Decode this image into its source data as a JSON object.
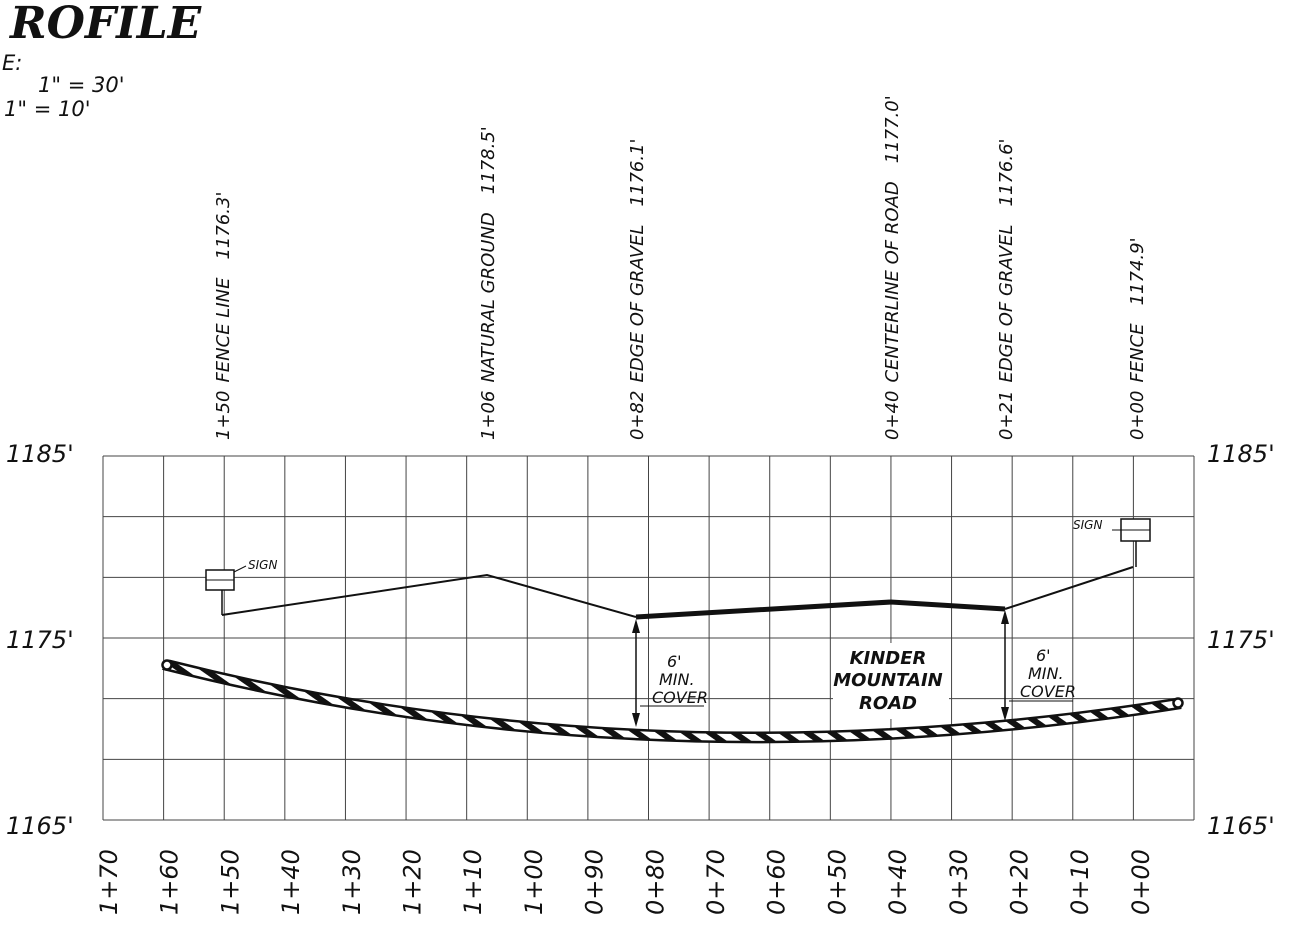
{
  "title": {
    "text": "ROFILE",
    "scale_label": "E:",
    "horizontal_scale": "1\" = 30'",
    "vertical_scale": "1\" = 10'"
  },
  "elevation_labels": {
    "left": [
      "1185'",
      "1175'",
      "1165'"
    ],
    "right": [
      "1185'",
      "1175'",
      "1165'"
    ]
  },
  "station_labels": [
    "1+70",
    "1+60",
    "1+50",
    "1+40",
    "1+30",
    "1+20",
    "1+10",
    "1+00",
    "0+90",
    "0+80",
    "0+70",
    "0+60",
    "0+50",
    "0+40",
    "0+30",
    "0+20",
    "0+10",
    "0+00"
  ],
  "callouts": [
    {
      "station": "1+50",
      "label": "FENCE LINE",
      "elevation": "1176.3'"
    },
    {
      "station": "1+06",
      "label": "NATURAL GROUND",
      "elevation": "1178.5'"
    },
    {
      "station": "0+82",
      "label": "EDGE OF GRAVEL",
      "elevation": "1176.1'"
    },
    {
      "station": "0+40",
      "label": "CENTERLINE OF ROAD",
      "elevation": "1177.0'"
    },
    {
      "station": "0+21",
      "label": "EDGE OF GRAVEL",
      "elevation": "1176.6'"
    },
    {
      "station": "0+00",
      "label": "FENCE",
      "elevation": "1174.9'"
    }
  ],
  "annotations": {
    "sign_left": "SIGN",
    "sign_right": "SIGN",
    "cover_left": [
      "6'",
      "MIN.",
      "COVER"
    ],
    "cover_right": [
      "6'",
      "MIN.",
      "COVER"
    ],
    "road_name": [
      "KINDER",
      "MOUNTAIN",
      "ROAD"
    ]
  },
  "profile": {
    "ground_points": [
      {
        "station_ft": 150,
        "elev_ft": 1176.3
      },
      {
        "station_ft": 106,
        "elev_ft": 1178.5
      },
      {
        "station_ft": 82,
        "elev_ft": 1176.1
      },
      {
        "station_ft": 40,
        "elev_ft": 1177.0
      },
      {
        "station_ft": 21,
        "elev_ft": 1176.6
      },
      {
        "station_ft": 0,
        "elev_ft": 1174.9
      }
    ],
    "grid": {
      "station_min": 0,
      "station_max": 170,
      "station_step": 10,
      "elev_min": 1165,
      "elev_max": 1185,
      "elev_step": 2
    }
  }
}
